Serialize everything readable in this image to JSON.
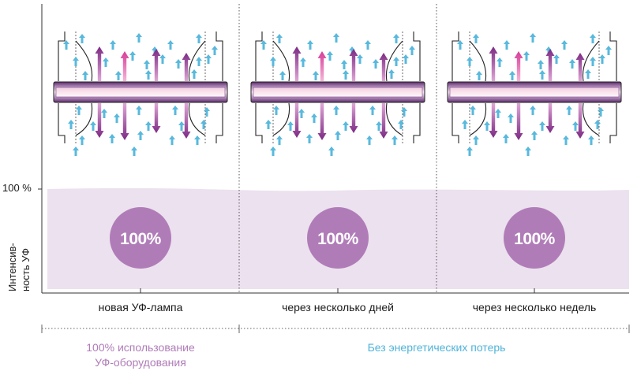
{
  "axis": {
    "y_tick_label": "100 %",
    "y_label_line1": "Интенсив-",
    "y_label_line2": "ность УФ"
  },
  "columns": [
    {
      "label": "новая УФ-лампа",
      "intensity": "100%"
    },
    {
      "label": "через несколько дней",
      "intensity": "100%"
    },
    {
      "label": "через несколько недель",
      "intensity": "100%"
    }
  ],
  "notes": {
    "left_line1": "100% использование",
    "left_line2": "УФ-оборудования",
    "right": "Без энергетических потерь"
  },
  "colors": {
    "band": "#ece1ee",
    "circle": "#b07cb8",
    "left_note": "#b07cb8",
    "right_note": "#4fb3d9",
    "arrow_cyan": "#59b9dc",
    "arrow_purple": "#8b2f8c",
    "arrow_pink": "#d94aa0"
  }
}
